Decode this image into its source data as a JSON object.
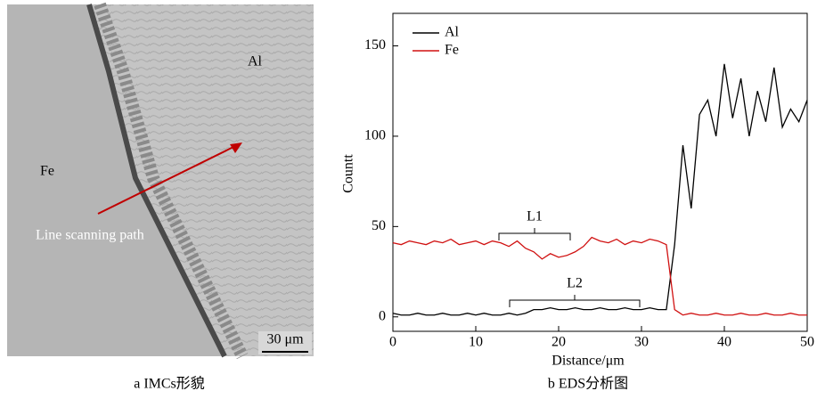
{
  "figure": {
    "image_labels": [
      "Fe",
      "Al",
      "Line scanning path"
    ],
    "scale_bar": "30 μm",
    "captions": [
      "a IMCs形貌",
      "b EDS分析图"
    ]
  },
  "chart_data": {
    "type": "line",
    "xlabel": "Distance/μm",
    "ylabel": "Countt",
    "x": [
      0,
      1,
      2,
      3,
      4,
      5,
      6,
      7,
      8,
      9,
      10,
      11,
      12,
      13,
      14,
      15,
      16,
      17,
      18,
      19,
      20,
      21,
      22,
      23,
      24,
      25,
      26,
      27,
      28,
      29,
      30,
      31,
      32,
      33,
      34,
      35,
      36,
      37,
      38,
      39,
      40,
      41,
      42,
      43,
      44,
      45,
      46,
      47,
      48,
      49,
      50
    ],
    "series": [
      {
        "name": "Al",
        "color": "#000000",
        "values": [
          2,
          1,
          1,
          2,
          1,
          1,
          2,
          1,
          1,
          2,
          1,
          2,
          1,
          1,
          2,
          1,
          2,
          4,
          4,
          5,
          4,
          4,
          5,
          4,
          4,
          5,
          4,
          4,
          5,
          4,
          4,
          5,
          4,
          4,
          40,
          95,
          60,
          112,
          120,
          100,
          140,
          110,
          132,
          100,
          125,
          108,
          138,
          105,
          115,
          108,
          120
        ]
      },
      {
        "name": "Fe",
        "color": "#d01010",
        "values": [
          41,
          40,
          42,
          41,
          40,
          42,
          41,
          43,
          40,
          41,
          42,
          40,
          42,
          41,
          39,
          42,
          38,
          36,
          32,
          35,
          33,
          34,
          36,
          39,
          44,
          42,
          41,
          43,
          40,
          42,
          41,
          43,
          42,
          40,
          4,
          1,
          2,
          1,
          1,
          2,
          1,
          1,
          2,
          1,
          1,
          2,
          1,
          1,
          2,
          1,
          1
        ]
      }
    ],
    "annotations": [
      "L1",
      "L2"
    ],
    "xlim": [
      0,
      50
    ],
    "xticks": [
      0,
      10,
      20,
      30,
      40,
      50
    ],
    "ylim": [
      -8,
      168
    ],
    "yticks": [
      0,
      50,
      100,
      150
    ],
    "legend": "upper left",
    "grid": false
  }
}
